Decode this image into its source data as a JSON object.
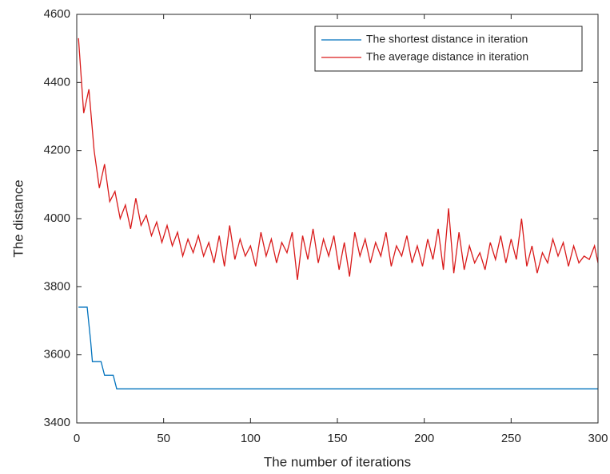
{
  "chart_data": {
    "type": "line",
    "xlabel": "The number of iterations",
    "ylabel": "The distance",
    "xlim": [
      0,
      300
    ],
    "ylim": [
      3400,
      4600
    ],
    "xticks": [
      0,
      50,
      100,
      150,
      200,
      250,
      300
    ],
    "yticks": [
      3400,
      3600,
      3800,
      4000,
      4200,
      4400,
      4600
    ],
    "legend": "northeast",
    "series": [
      {
        "name": "The shortest distance in iteration",
        "color": "#0072bd",
        "x": [
          1,
          6,
          7,
          8,
          9,
          14,
          15,
          16,
          21,
          22,
          23,
          300
        ],
        "values": [
          3740,
          3740,
          3690,
          3640,
          3580,
          3580,
          3560,
          3540,
          3540,
          3520,
          3500,
          3500
        ]
      },
      {
        "name": "The average distance in iteration",
        "color": "#d91a1a",
        "x": [
          1,
          4,
          7,
          10,
          13,
          16,
          19,
          22,
          25,
          28,
          31,
          34,
          37,
          40,
          43,
          46,
          49,
          52,
          55,
          58,
          61,
          64,
          67,
          70,
          73,
          76,
          79,
          82,
          85,
          88,
          91,
          94,
          97,
          100,
          103,
          106,
          109,
          112,
          115,
          118,
          121,
          124,
          127,
          130,
          133,
          136,
          139,
          142,
          145,
          148,
          151,
          154,
          157,
          160,
          163,
          166,
          169,
          172,
          175,
          178,
          181,
          184,
          187,
          190,
          193,
          196,
          199,
          202,
          205,
          208,
          211,
          214,
          217,
          220,
          223,
          226,
          229,
          232,
          235,
          238,
          241,
          244,
          247,
          250,
          253,
          256,
          259,
          262,
          265,
          268,
          271,
          274,
          277,
          280,
          283,
          286,
          289,
          292,
          295,
          298,
          300
        ],
        "values": [
          4530,
          4310,
          4380,
          4200,
          4090,
          4160,
          4050,
          4080,
          4000,
          4040,
          3970,
          4060,
          3980,
          4010,
          3950,
          3990,
          3930,
          3980,
          3920,
          3960,
          3890,
          3940,
          3900,
          3950,
          3890,
          3930,
          3870,
          3950,
          3860,
          3980,
          3880,
          3940,
          3890,
          3920,
          3860,
          3960,
          3890,
          3940,
          3870,
          3930,
          3900,
          3960,
          3820,
          3950,
          3880,
          3970,
          3870,
          3940,
          3890,
          3950,
          3850,
          3930,
          3830,
          3960,
          3890,
          3940,
          3870,
          3930,
          3890,
          3960,
          3860,
          3920,
          3890,
          3950,
          3870,
          3920,
          3860,
          3940,
          3880,
          3970,
          3850,
          4030,
          3840,
          3960,
          3850,
          3920,
          3870,
          3900,
          3850,
          3930,
          3880,
          3950,
          3870,
          3940,
          3880,
          4000,
          3860,
          3920,
          3840,
          3900,
          3870,
          3940,
          3890,
          3930,
          3860,
          3920,
          3870,
          3890,
          3880,
          3920,
          3870
        ]
      }
    ]
  }
}
